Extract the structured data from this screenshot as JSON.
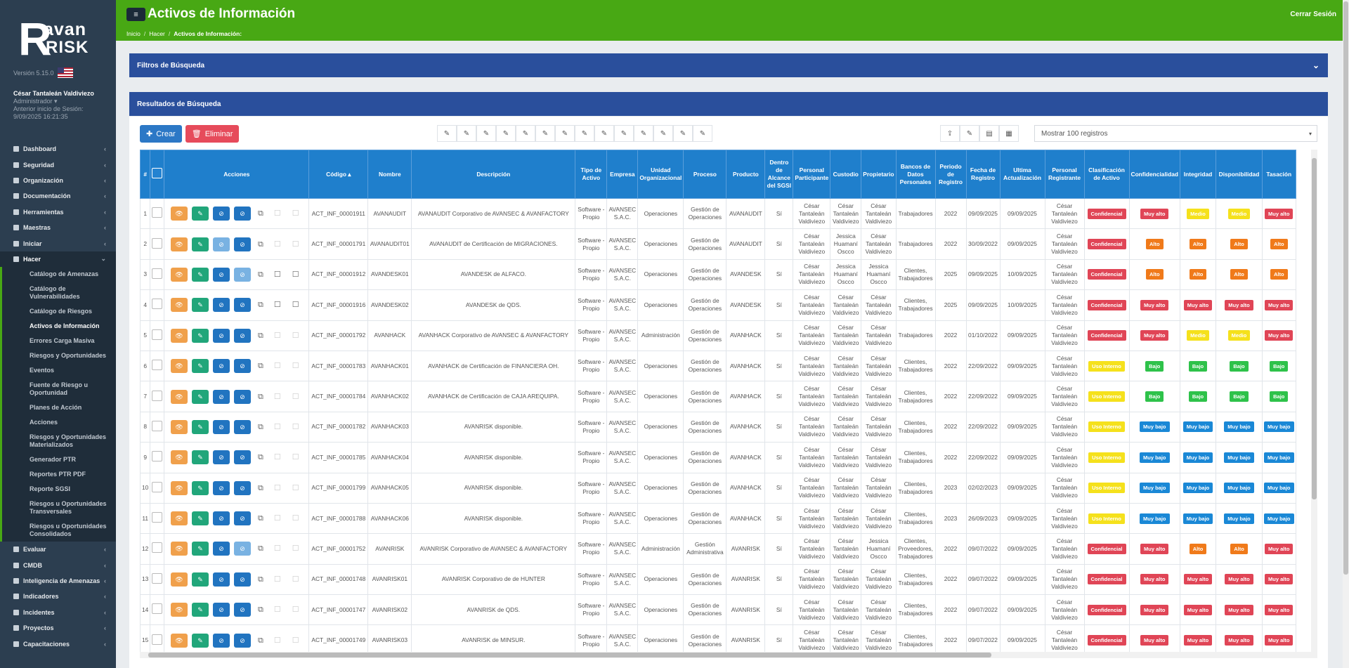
{
  "app": {
    "logo_r": "R",
    "logo_avan": "avan",
    "logo_risk": "RISK",
    "version": "Versión 5.15.0"
  },
  "user": {
    "name": "César Tantaleán Valdiviezo",
    "role": "Administrador ▾",
    "last_login_label": "Anterior inicio de Sesión:",
    "last_login": "9/09/2025 16:21:35"
  },
  "nav": {
    "items_top": [
      {
        "label": "Dashboard"
      },
      {
        "label": "Seguridad"
      },
      {
        "label": "Organización"
      },
      {
        "label": "Documentación"
      },
      {
        "label": "Herramientas"
      },
      {
        "label": "Maestras"
      },
      {
        "label": "Iniciar"
      }
    ],
    "active": {
      "label": "Hacer"
    },
    "sub": [
      "Catálogo de Amenazas",
      "Catálogo de Vulnerabilidades",
      "Catálogo de Riesgos",
      "Activos de Información",
      "Errores Carga Masiva",
      "Riesgos y Oportunidades",
      "Eventos",
      "Fuente de Riesgo u Oportunidad",
      "Planes de Acción",
      "Acciones",
      "Riesgos y Oportunidades Materializados",
      "Generador PTR",
      "Reportes PTR PDF",
      "Reporte SGSI",
      "Riesgos u Oportunidades Transversales",
      "Riesgos u Oportunidades Consolidados"
    ],
    "items_bottom": [
      {
        "label": "Evaluar"
      },
      {
        "label": "CMDB"
      },
      {
        "label": "Inteligencia de Amenazas"
      },
      {
        "label": "Indicadores"
      },
      {
        "label": "Incidentes"
      },
      {
        "label": "Proyectos"
      },
      {
        "label": "Capacitaciones"
      }
    ]
  },
  "header": {
    "menu_icon": "≡",
    "title": "Activos de Información",
    "logout": "Cerrar Sesión",
    "breadcrumb": [
      "Inicio",
      "Hacer",
      "Activos de Información:"
    ]
  },
  "filters": {
    "title": "Filtros de Búsqueda"
  },
  "results": {
    "title": "Resultados de Búsqueda",
    "create": "Crear",
    "delete": "Eliminar",
    "show": "Mostrar 100 registros"
  },
  "table": {
    "headers": [
      "#",
      "",
      "Acciones",
      "Código ▴",
      "Nombre",
      "Descripción",
      "Tipo de Activo",
      "Empresa",
      "Unidad Organizacional",
      "Proceso",
      "Producto",
      "Dentro de Alcance del SGSI",
      "Personal Participante",
      "Custodio",
      "Propietario",
      "Bancos de Datos Personales",
      "Periodo de Registro",
      "Fecha de Registro",
      "Ultima Actualización",
      "Personal Registrante",
      "Clasificación de Activo",
      "Confidencialidad",
      "Integridad",
      "Disponibilidad",
      "Tasación"
    ],
    "rows": [
      {
        "n": "1",
        "code": "ACT_INF_00001911",
        "name": "AVANAUDIT",
        "desc": "AVANAUDIT Corporativo de AVANSEC & AVANFACTORY",
        "tipo": "Software - Propio",
        "emp": "AVANSEC S.A.C.",
        "unidad": "Operaciones",
        "proc": "Gestión de Operaciones",
        "prod": "AVANAUDIT",
        "alc": "Sí",
        "part": "César Tantaleán Valdiviezo",
        "cust": "César Tantaleán Valdiviezo",
        "prop": "César Tantaleán Valdiviezo",
        "banco": "Trabajadores",
        "per": "2022",
        "fr": "09/09/2025",
        "ua": "09/09/2025",
        "reg": "César Tantaleán Valdiviezo",
        "clas": "Confidencial",
        "conf": "Muy alto",
        "int": "Medio",
        "disp": "Medio",
        "tas": "Muy alto"
      },
      {
        "n": "2",
        "code": "ACT_INF_00001791",
        "name": "AVANAUDIT01",
        "desc": "AVANAUDIT de Certificación de MIGRACIONES.",
        "tipo": "Software - Propio",
        "emp": "AVANSEC S.A.C.",
        "unidad": "Operaciones",
        "proc": "Gestión de Operaciones",
        "prod": "AVANAUDIT",
        "alc": "Sí",
        "part": "César Tantaleán Valdiviezo",
        "cust": "Jessica Huamaní Oscco",
        "prop": "César Tantaleán Valdiviezo",
        "banco": "Trabajadores",
        "per": "2022",
        "fr": "30/09/2022",
        "ua": "09/09/2025",
        "reg": "César Tantaleán Valdiviezo",
        "clas": "Confidencial",
        "conf": "Alto",
        "int": "Alto",
        "disp": "Alto",
        "tas": "Alto"
      },
      {
        "n": "3",
        "code": "ACT_INF_00001912",
        "name": "AVANDESK01",
        "desc": "AVANDESK de ALFACO.",
        "tipo": "Software - Propio",
        "emp": "AVANSEC S.A.C.",
        "unidad": "Operaciones",
        "proc": "Gestión de Operaciones",
        "prod": "AVANDESK",
        "alc": "Sí",
        "part": "César Tantaleán Valdiviezo",
        "cust": "Jessica Huamaní Oscco",
        "prop": "Jessica Huamaní Oscco",
        "banco": "Clientes, Trabajadores",
        "per": "2025",
        "fr": "09/09/2025",
        "ua": "10/09/2025",
        "reg": "César Tantaleán Valdiviezo",
        "clas": "Confidencial",
        "conf": "Alto",
        "int": "Alto",
        "disp": "Alto",
        "tas": "Alto"
      },
      {
        "n": "4",
        "code": "ACT_INF_00001916",
        "name": "AVANDESK02",
        "desc": "AVANDESK de QDS.",
        "tipo": "Software - Propio",
        "emp": "AVANSEC S.A.C.",
        "unidad": "Operaciones",
        "proc": "Gestión de Operaciones",
        "prod": "AVANDESK",
        "alc": "Sí",
        "part": "César Tantaleán Valdiviezo",
        "cust": "César Tantaleán Valdiviezo",
        "prop": "César Tantaleán Valdiviezo",
        "banco": "Clientes, Trabajadores",
        "per": "2025",
        "fr": "09/09/2025",
        "ua": "10/09/2025",
        "reg": "César Tantaleán Valdiviezo",
        "clas": "Confidencial",
        "conf": "Muy alto",
        "int": "Muy alto",
        "disp": "Muy alto",
        "tas": "Muy alto"
      },
      {
        "n": "5",
        "code": "ACT_INF_00001792",
        "name": "AVANHACK",
        "desc": "AVANHACK Corporativo de AVANSEC & AVANFACTORY",
        "tipo": "Software - Propio",
        "emp": "AVANSEC S.A.C.",
        "unidad": "Administración",
        "proc": "Gestión de Operaciones",
        "prod": "AVANHACK",
        "alc": "Sí",
        "part": "César Tantaleán Valdiviezo",
        "cust": "César Tantaleán Valdiviezo",
        "prop": "César Tantaleán Valdiviezo",
        "banco": "Trabajadores",
        "per": "2022",
        "fr": "01/10/2022",
        "ua": "09/09/2025",
        "reg": "César Tantaleán Valdiviezo",
        "clas": "Confidencial",
        "conf": "Muy alto",
        "int": "Medio",
        "disp": "Medio",
        "tas": "Muy alto"
      },
      {
        "n": "6",
        "code": "ACT_INF_00001783",
        "name": "AVANHACK01",
        "desc": "AVANHACK de Certificación de FINANCIERA OH.",
        "tipo": "Software - Propio",
        "emp": "AVANSEC S.A.C.",
        "unidad": "Operaciones",
        "proc": "Gestión de Operaciones",
        "prod": "AVANHACK",
        "alc": "Sí",
        "part": "César Tantaleán Valdiviezo",
        "cust": "César Tantaleán Valdiviezo",
        "prop": "César Tantaleán Valdiviezo",
        "banco": "Clientes, Trabajadores",
        "per": "2022",
        "fr": "22/09/2022",
        "ua": "09/09/2025",
        "reg": "César Tantaleán Valdiviezo",
        "clas": "Uso Interno",
        "conf": "Bajo",
        "int": "Bajo",
        "disp": "Bajo",
        "tas": "Bajo"
      },
      {
        "n": "7",
        "code": "ACT_INF_00001784",
        "name": "AVANHACK02",
        "desc": "AVANHACK de Certificación de CAJA AREQUIPA.",
        "tipo": "Software - Propio",
        "emp": "AVANSEC S.A.C.",
        "unidad": "Operaciones",
        "proc": "Gestión de Operaciones",
        "prod": "AVANHACK",
        "alc": "Sí",
        "part": "César Tantaleán Valdiviezo",
        "cust": "César Tantaleán Valdiviezo",
        "prop": "César Tantaleán Valdiviezo",
        "banco": "Clientes, Trabajadores",
        "per": "2022",
        "fr": "22/09/2022",
        "ua": "09/09/2025",
        "reg": "César Tantaleán Valdiviezo",
        "clas": "Uso Interno",
        "conf": "Bajo",
        "int": "Bajo",
        "disp": "Bajo",
        "tas": "Bajo"
      },
      {
        "n": "8",
        "code": "ACT_INF_00001782",
        "name": "AVANHACK03",
        "desc": "AVANRISK disponible.",
        "tipo": "Software - Propio",
        "emp": "AVANSEC S.A.C.",
        "unidad": "Operaciones",
        "proc": "Gestión de Operaciones",
        "prod": "AVANHACK",
        "alc": "Sí",
        "part": "César Tantaleán Valdiviezo",
        "cust": "César Tantaleán Valdiviezo",
        "prop": "César Tantaleán Valdiviezo",
        "banco": "Clientes, Trabajadores",
        "per": "2022",
        "fr": "22/09/2022",
        "ua": "09/09/2025",
        "reg": "César Tantaleán Valdiviezo",
        "clas": "Uso Interno",
        "conf": "Muy bajo",
        "int": "Muy bajo",
        "disp": "Muy bajo",
        "tas": "Muy bajo"
      },
      {
        "n": "9",
        "code": "ACT_INF_00001785",
        "name": "AVANHACK04",
        "desc": "AVANRISK disponible.",
        "tipo": "Software - Propio",
        "emp": "AVANSEC S.A.C.",
        "unidad": "Operaciones",
        "proc": "Gestión de Operaciones",
        "prod": "AVANHACK",
        "alc": "Sí",
        "part": "César Tantaleán Valdiviezo",
        "cust": "César Tantaleán Valdiviezo",
        "prop": "César Tantaleán Valdiviezo",
        "banco": "Clientes, Trabajadores",
        "per": "2022",
        "fr": "22/09/2022",
        "ua": "09/09/2025",
        "reg": "César Tantaleán Valdiviezo",
        "clas": "Uso Interno",
        "conf": "Muy bajo",
        "int": "Muy bajo",
        "disp": "Muy bajo",
        "tas": "Muy bajo"
      },
      {
        "n": "10",
        "code": "ACT_INF_00001799",
        "name": "AVANHACK05",
        "desc": "AVANRISK disponible.",
        "tipo": "Software - Propio",
        "emp": "AVANSEC S.A.C.",
        "unidad": "Operaciones",
        "proc": "Gestión de Operaciones",
        "prod": "AVANHACK",
        "alc": "Sí",
        "part": "César Tantaleán Valdiviezo",
        "cust": "César Tantaleán Valdiviezo",
        "prop": "César Tantaleán Valdiviezo",
        "banco": "Clientes, Trabajadores",
        "per": "2023",
        "fr": "02/02/2023",
        "ua": "09/09/2025",
        "reg": "César Tantaleán Valdiviezo",
        "clas": "Uso Interno",
        "conf": "Muy bajo",
        "int": "Muy bajo",
        "disp": "Muy bajo",
        "tas": "Muy bajo"
      },
      {
        "n": "11",
        "code": "ACT_INF_00001788",
        "name": "AVANHACK06",
        "desc": "AVANRISK disponible.",
        "tipo": "Software - Propio",
        "emp": "AVANSEC S.A.C.",
        "unidad": "Operaciones",
        "proc": "Gestión de Operaciones",
        "prod": "AVANHACK",
        "alc": "Sí",
        "part": "César Tantaleán Valdiviezo",
        "cust": "César Tantaleán Valdiviezo",
        "prop": "César Tantaleán Valdiviezo",
        "banco": "Clientes, Trabajadores",
        "per": "2023",
        "fr": "26/09/2023",
        "ua": "09/09/2025",
        "reg": "César Tantaleán Valdiviezo",
        "clas": "Uso Interno",
        "conf": "Muy bajo",
        "int": "Muy bajo",
        "disp": "Muy bajo",
        "tas": "Muy bajo"
      },
      {
        "n": "12",
        "code": "ACT_INF_00001752",
        "name": "AVANRISK",
        "desc": "AVANRISK Corporativo de AVANSEC & AVANFACTORY",
        "tipo": "Software - Propio",
        "emp": "AVANSEC S.A.C.",
        "unidad": "Administración",
        "proc": "Gestión Administrativa",
        "prod": "AVANRISK",
        "alc": "Sí",
        "part": "César Tantaleán Valdiviezo",
        "cust": "César Tantaleán Valdiviezo",
        "prop": "Jessica Huamaní Oscco",
        "banco": "Clientes, Proveedores, Trabajadores",
        "per": "2022",
        "fr": "09/07/2022",
        "ua": "09/09/2025",
        "reg": "César Tantaleán Valdiviezo",
        "clas": "Confidencial",
        "conf": "Muy alto",
        "int": "Alto",
        "disp": "Alto",
        "tas": "Muy alto"
      },
      {
        "n": "13",
        "code": "ACT_INF_00001748",
        "name": "AVANRISK01",
        "desc": "AVANRISK Corporativo de de HUNTER",
        "tipo": "Software - Propio",
        "emp": "AVANSEC S.A.C.",
        "unidad": "Operaciones",
        "proc": "Gestión de Operaciones",
        "prod": "AVANRISK",
        "alc": "Sí",
        "part": "César Tantaleán Valdiviezo",
        "cust": "César Tantaleán Valdiviezo",
        "prop": "César Tantaleán Valdiviezo",
        "banco": "Clientes, Trabajadores",
        "per": "2022",
        "fr": "09/07/2022",
        "ua": "09/09/2025",
        "reg": "César Tantaleán Valdiviezo",
        "clas": "Confidencial",
        "conf": "Muy alto",
        "int": "Muy alto",
        "disp": "Muy alto",
        "tas": "Muy alto"
      },
      {
        "n": "14",
        "code": "ACT_INF_00001747",
        "name": "AVANRISK02",
        "desc": "AVANRISK de QDS.",
        "tipo": "Software - Propio",
        "emp": "AVANSEC S.A.C.",
        "unidad": "Operaciones",
        "proc": "Gestión de Operaciones",
        "prod": "AVANRISK",
        "alc": "Sí",
        "part": "César Tantaleán Valdiviezo",
        "cust": "César Tantaleán Valdiviezo",
        "prop": "César Tantaleán Valdiviezo",
        "banco": "Clientes, Trabajadores",
        "per": "2022",
        "fr": "09/07/2022",
        "ua": "09/09/2025",
        "reg": "César Tantaleán Valdiviezo",
        "clas": "Confidencial",
        "conf": "Muy alto",
        "int": "Muy alto",
        "disp": "Muy alto",
        "tas": "Muy alto"
      },
      {
        "n": "15",
        "code": "ACT_INF_00001749",
        "name": "AVANRISK03",
        "desc": "AVANRISK de MINSUR.",
        "tipo": "Software - Propio",
        "emp": "AVANSEC S.A.C.",
        "unidad": "Operaciones",
        "proc": "Gestión de Operaciones",
        "prod": "AVANRISK",
        "alc": "Sí",
        "part": "César Tantaleán Valdiviezo",
        "cust": "César Tantaleán Valdiviezo",
        "prop": "César Tantaleán Valdiviezo",
        "banco": "Clientes, Trabajadores",
        "per": "2022",
        "fr": "09/07/2022",
        "ua": "09/09/2025",
        "reg": "César Tantaleán Valdiviezo",
        "clas": "Confidencial",
        "conf": "Muy alto",
        "int": "Muy alto",
        "disp": "Muy alto",
        "tas": "Muy alto"
      }
    ]
  },
  "colors": {
    "topbar": "#48a814",
    "sidebar": "#2c3e50",
    "panel": "#2a4f9c",
    "table_header": "#1f7fcc"
  }
}
